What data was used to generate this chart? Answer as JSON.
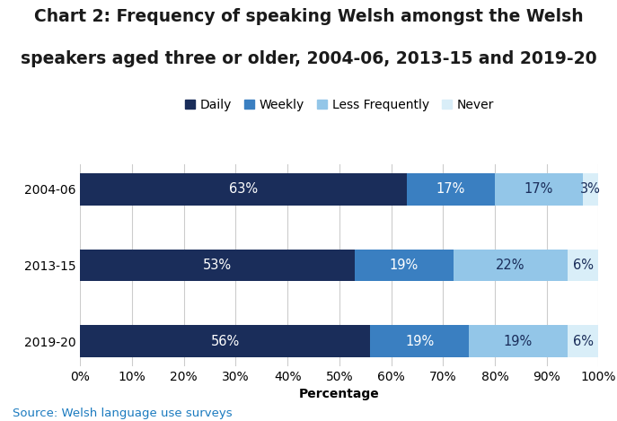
{
  "title_line1": "Chart 2: Frequency of speaking Welsh amongst the Welsh",
  "title_line2": "speakers aged three or older, 2004-06, 2013-15 and 2019-20",
  "categories": [
    "2004-06",
    "2013-15",
    "2019-20"
  ],
  "series": {
    "Daily": [
      63,
      53,
      56
    ],
    "Weekly": [
      17,
      19,
      19
    ],
    "Less Frequently": [
      17,
      22,
      19
    ],
    "Never": [
      3,
      6,
      6
    ]
  },
  "colors": {
    "Daily": "#1a2d5a",
    "Weekly": "#3a7fc1",
    "Less Frequently": "#93c6e8",
    "Never": "#d9eef8"
  },
  "xlabel": "Percentage",
  "source": "Source: Welsh language use surveys",
  "xlim": [
    0,
    100
  ],
  "xticks": [
    0,
    10,
    20,
    30,
    40,
    50,
    60,
    70,
    80,
    90,
    100
  ],
  "bar_height": 0.42,
  "label_fontsize": 10.5,
  "title_fontsize": 13.5,
  "axis_fontsize": 10,
  "legend_fontsize": 10,
  "source_color": "#1a7abf",
  "title_color": "#1a1a1a",
  "background_color": "#ffffff",
  "grid_color": "#cccccc"
}
